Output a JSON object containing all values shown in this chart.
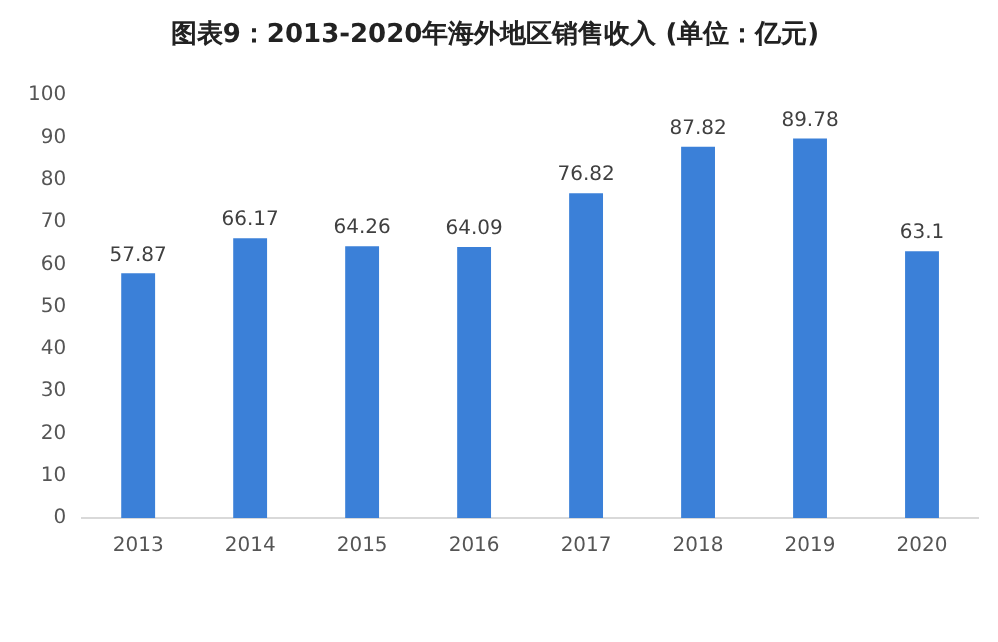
{
  "chart_data": {
    "type": "bar",
    "title": "图表9：2013-2020年海外地区销售收入 (单位：亿元)",
    "categories": [
      "2013",
      "2014",
      "2015",
      "2016",
      "2017",
      "2018",
      "2019",
      "2020"
    ],
    "values": [
      57.87,
      66.17,
      64.26,
      64.09,
      76.82,
      87.82,
      89.78,
      63.1
    ],
    "color": "#3b80d8",
    "ylim": [
      0,
      100
    ],
    "yticks": [
      0,
      10,
      20,
      30,
      40,
      50,
      60,
      70,
      80,
      90,
      100
    ],
    "grid": false,
    "data_labels": true
  }
}
